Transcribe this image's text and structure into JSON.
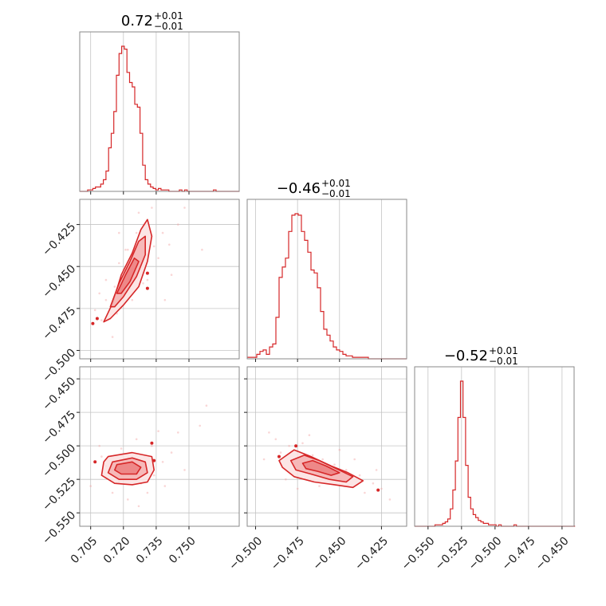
{
  "colors": {
    "series": "#d62728",
    "fill": "#f1a3a3",
    "grid": "#c4c4c4",
    "frame": "#8a8a8a"
  },
  "chart_data": {
    "type": "corner",
    "grid": true,
    "params": [
      {
        "title": "0.72",
        "upper": "+0.01",
        "lower": "−0.01",
        "range": [
          0.7,
          0.773
        ]
      },
      {
        "title": "−0.46",
        "upper": "+0.01",
        "lower": "−0.01",
        "range": [
          -0.505,
          -0.41
        ]
      },
      {
        "title": "−0.52",
        "upper": "+0.01",
        "lower": "−0.01",
        "range": [
          -0.56,
          -0.441
        ]
      }
    ],
    "x_ticks": [
      {
        "values": [
          0.705,
          0.72,
          0.735,
          0.75
        ],
        "labels": [
          "0.705",
          "0.720",
          "0.735",
          "0.750"
        ]
      },
      {
        "values": [
          -0.5,
          -0.475,
          -0.45,
          -0.425
        ],
        "labels": [
          "−0.500",
          "−0.475",
          "−0.450",
          "−0.425"
        ]
      },
      {
        "values": [
          -0.55,
          -0.525,
          -0.5,
          -0.475,
          -0.45
        ],
        "labels": [
          "−0.550",
          "−0.525",
          "−0.500",
          "−0.475",
          "−0.450"
        ]
      }
    ],
    "y_ticks": [
      {
        "param": 1,
        "values": [
          -0.425,
          -0.45,
          -0.475,
          -0.5
        ],
        "labels": [
          "−0.425",
          "−0.450",
          "−0.475",
          "−0.500"
        ]
      },
      {
        "param": 2,
        "values": [
          -0.55,
          -0.525,
          -0.5,
          -0.475,
          -0.45
        ],
        "labels": [
          "−0.550",
          "−0.525",
          "−0.500",
          "−0.475",
          "−0.450"
        ]
      }
    ],
    "histograms": [
      {
        "param": 0,
        "bin_start": 0.7,
        "bin_width": 0.0012,
        "counts": [
          0,
          0,
          0,
          1,
          1,
          2,
          3,
          3,
          5,
          8,
          14,
          30,
          40,
          55,
          80,
          95,
          100,
          98,
          82,
          75,
          72,
          60,
          58,
          40,
          18,
          8,
          5,
          3,
          2,
          1,
          2,
          1,
          1,
          1,
          0,
          0,
          0,
          0,
          1,
          0,
          1,
          0,
          0,
          0,
          0,
          0,
          0,
          0,
          0,
          0,
          0,
          1,
          0,
          0,
          0,
          0,
          0,
          0,
          0,
          0,
          0
        ]
      },
      {
        "param": 1,
        "bin_start": -0.505,
        "bin_width": 0.0019,
        "counts": [
          1,
          1,
          1,
          3,
          5,
          6,
          3,
          8,
          10,
          28,
          55,
          62,
          68,
          86,
          97,
          98,
          97,
          86,
          80,
          72,
          60,
          58,
          48,
          32,
          20,
          16,
          12,
          8,
          6,
          5,
          3,
          2,
          2,
          1,
          1,
          1,
          1,
          1,
          0,
          0,
          0,
          0,
          0,
          0,
          0,
          0,
          0,
          0,
          0,
          0
        ]
      },
      {
        "param": 2,
        "bin_start": -0.56,
        "bin_width": 0.0019,
        "counts": [
          0,
          0,
          0,
          0,
          0,
          0,
          0,
          0,
          1,
          1,
          1,
          2,
          3,
          5,
          12,
          25,
          45,
          75,
          100,
          75,
          42,
          20,
          12,
          8,
          6,
          4,
          3,
          2,
          2,
          1,
          1,
          1,
          0,
          1,
          0,
          0,
          0,
          0,
          0,
          1,
          0,
          0,
          0,
          0,
          0,
          0,
          0,
          0,
          0,
          0,
          0,
          0,
          0,
          0,
          0,
          0,
          0,
          0,
          0,
          0,
          0,
          0,
          0
        ]
      }
    ],
    "scatter_2d": [
      {
        "x_param": 0,
        "y_param": 1,
        "contour_levels": [
          [
            [
              0.711,
              -0.483
            ],
            [
              0.715,
              -0.472
            ],
            [
              0.719,
              -0.455
            ],
            [
              0.724,
              -0.442
            ],
            [
              0.728,
              -0.428
            ],
            [
              0.731,
              -0.422
            ],
            [
              0.733,
              -0.432
            ],
            [
              0.731,
              -0.447
            ],
            [
              0.727,
              -0.462
            ],
            [
              0.72,
              -0.473
            ],
            [
              0.714,
              -0.481
            ]
          ],
          [
            [
              0.714,
              -0.474
            ],
            [
              0.718,
              -0.46
            ],
            [
              0.723,
              -0.447
            ],
            [
              0.727,
              -0.435
            ],
            [
              0.73,
              -0.432
            ],
            [
              0.73,
              -0.443
            ],
            [
              0.726,
              -0.456
            ],
            [
              0.72,
              -0.468
            ],
            [
              0.716,
              -0.474
            ]
          ],
          [
            [
              0.717,
              -0.466
            ],
            [
              0.721,
              -0.455
            ],
            [
              0.725,
              -0.445
            ],
            [
              0.727,
              -0.447
            ],
            [
              0.723,
              -0.459
            ],
            [
              0.719,
              -0.466
            ]
          ]
        ],
        "points": [
          [
            0.712,
            -0.47
          ],
          [
            0.716,
            -0.462
          ],
          [
            0.718,
            -0.448
          ],
          [
            0.722,
            -0.44
          ],
          [
            0.726,
            -0.43
          ],
          [
            0.73,
            -0.425
          ],
          [
            0.734,
            -0.438
          ],
          [
            0.729,
            -0.46
          ],
          [
            0.724,
            -0.47
          ],
          [
            0.71,
            -0.482
          ],
          [
            0.707,
            -0.476
          ],
          [
            0.72,
            -0.452
          ],
          [
            0.725,
            -0.451
          ],
          [
            0.738,
            -0.43
          ],
          [
            0.745,
            -0.425
          ],
          [
            0.748,
            -0.415
          ],
          [
            0.742,
            -0.455
          ],
          [
            0.739,
            -0.47
          ],
          [
            0.715,
            -0.492
          ],
          [
            0.727,
            -0.418
          ],
          [
            0.733,
            -0.415
          ],
          [
            0.718,
            -0.43
          ],
          [
            0.712,
            -0.458
          ],
          [
            0.731,
            -0.458
          ],
          [
            0.736,
            -0.445
          ],
          [
            0.709,
            -0.466
          ],
          [
            0.721,
            -0.44
          ],
          [
            0.728,
            -0.447
          ],
          [
            0.723,
            -0.463
          ],
          [
            0.717,
            -0.478
          ],
          [
            0.756,
            -0.44
          ],
          [
            0.741,
            -0.437
          ]
        ],
        "outliers": [
          [
            0.706,
            -0.484
          ],
          [
            0.708,
            -0.481
          ],
          [
            0.731,
            -0.454
          ],
          [
            0.731,
            -0.463
          ]
        ]
      },
      {
        "x_param": 0,
        "y_param": 2,
        "contour_levels": [
          [
            [
              0.713,
              -0.508
            ],
            [
              0.724,
              -0.505
            ],
            [
              0.733,
              -0.508
            ],
            [
              0.734,
              -0.518
            ],
            [
              0.731,
              -0.527
            ],
            [
              0.724,
              -0.529
            ],
            [
              0.716,
              -0.528
            ],
            [
              0.71,
              -0.522
            ],
            [
              0.711,
              -0.512
            ]
          ],
          [
            [
              0.715,
              -0.512
            ],
            [
              0.724,
              -0.509
            ],
            [
              0.73,
              -0.512
            ],
            [
              0.731,
              -0.52
            ],
            [
              0.726,
              -0.525
            ],
            [
              0.718,
              -0.525
            ],
            [
              0.713,
              -0.52
            ]
          ],
          [
            [
              0.717,
              -0.514
            ],
            [
              0.724,
              -0.512
            ],
            [
              0.728,
              -0.516
            ],
            [
              0.726,
              -0.521
            ],
            [
              0.719,
              -0.521
            ],
            [
              0.716,
              -0.518
            ]
          ]
        ],
        "points": [
          [
            0.712,
            -0.515
          ],
          [
            0.716,
            -0.52
          ],
          [
            0.72,
            -0.51
          ],
          [
            0.725,
            -0.518
          ],
          [
            0.73,
            -0.514
          ],
          [
            0.734,
            -0.522
          ],
          [
            0.728,
            -0.528
          ],
          [
            0.718,
            -0.527
          ],
          [
            0.71,
            -0.508
          ],
          [
            0.738,
            -0.512
          ],
          [
            0.742,
            -0.505
          ],
          [
            0.745,
            -0.49
          ],
          [
            0.733,
            -0.5
          ],
          [
            0.726,
            -0.495
          ],
          [
            0.705,
            -0.53
          ],
          [
            0.715,
            -0.535
          ],
          [
            0.739,
            -0.53
          ],
          [
            0.748,
            -0.518
          ],
          [
            0.755,
            -0.485
          ],
          [
            0.758,
            -0.47
          ],
          [
            0.722,
            -0.54
          ],
          [
            0.709,
            -0.5
          ],
          [
            0.731,
            -0.535
          ],
          [
            0.736,
            -0.489
          ],
          [
            0.719,
            -0.502
          ],
          [
            0.727,
            -0.545
          ]
        ],
        "outliers": [
          [
            0.707,
            -0.512
          ],
          [
            0.733,
            -0.498
          ],
          [
            0.734,
            -0.511
          ]
        ]
      },
      {
        "x_param": 1,
        "y_param": 2,
        "contour_levels": [
          [
            [
              -0.486,
              -0.511
            ],
            [
              -0.477,
              -0.503
            ],
            [
              -0.467,
              -0.508
            ],
            [
              -0.455,
              -0.515
            ],
            [
              -0.445,
              -0.52
            ],
            [
              -0.436,
              -0.526
            ],
            [
              -0.442,
              -0.531
            ],
            [
              -0.453,
              -0.529
            ],
            [
              -0.465,
              -0.527
            ],
            [
              -0.477,
              -0.523
            ],
            [
              -0.484,
              -0.516
            ]
          ],
          [
            [
              -0.479,
              -0.511
            ],
            [
              -0.471,
              -0.507
            ],
            [
              -0.462,
              -0.511
            ],
            [
              -0.452,
              -0.517
            ],
            [
              -0.442,
              -0.523
            ],
            [
              -0.446,
              -0.527
            ],
            [
              -0.456,
              -0.525
            ],
            [
              -0.467,
              -0.521
            ],
            [
              -0.476,
              -0.518
            ]
          ],
          [
            [
              -0.472,
              -0.513
            ],
            [
              -0.466,
              -0.511
            ],
            [
              -0.458,
              -0.515
            ],
            [
              -0.45,
              -0.52
            ],
            [
              -0.455,
              -0.522
            ],
            [
              -0.463,
              -0.519
            ],
            [
              -0.47,
              -0.517
            ]
          ]
        ],
        "points": [
          [
            -0.485,
            -0.505
          ],
          [
            -0.48,
            -0.5
          ],
          [
            -0.472,
            -0.498
          ],
          [
            -0.466,
            -0.507
          ],
          [
            -0.46,
            -0.51
          ],
          [
            -0.453,
            -0.514
          ],
          [
            -0.446,
            -0.518
          ],
          [
            -0.438,
            -0.522
          ],
          [
            -0.43,
            -0.528
          ],
          [
            -0.425,
            -0.532
          ],
          [
            -0.47,
            -0.52
          ],
          [
            -0.477,
            -0.515
          ],
          [
            -0.488,
            -0.495
          ],
          [
            -0.492,
            -0.49
          ],
          [
            -0.482,
            -0.525
          ],
          [
            -0.462,
            -0.53
          ],
          [
            -0.45,
            -0.503
          ],
          [
            -0.441,
            -0.51
          ],
          [
            -0.42,
            -0.54
          ],
          [
            -0.428,
            -0.518
          ],
          [
            -0.475,
            -0.532
          ],
          [
            -0.495,
            -0.51
          ],
          [
            -0.458,
            -0.524
          ],
          [
            -0.435,
            -0.535
          ],
          [
            -0.468,
            -0.492
          ],
          [
            -0.445,
            -0.53
          ]
        ],
        "outliers": [
          [
            -0.476,
            -0.5
          ],
          [
            -0.486,
            -0.508
          ],
          [
            -0.427,
            -0.533
          ]
        ]
      }
    ]
  }
}
